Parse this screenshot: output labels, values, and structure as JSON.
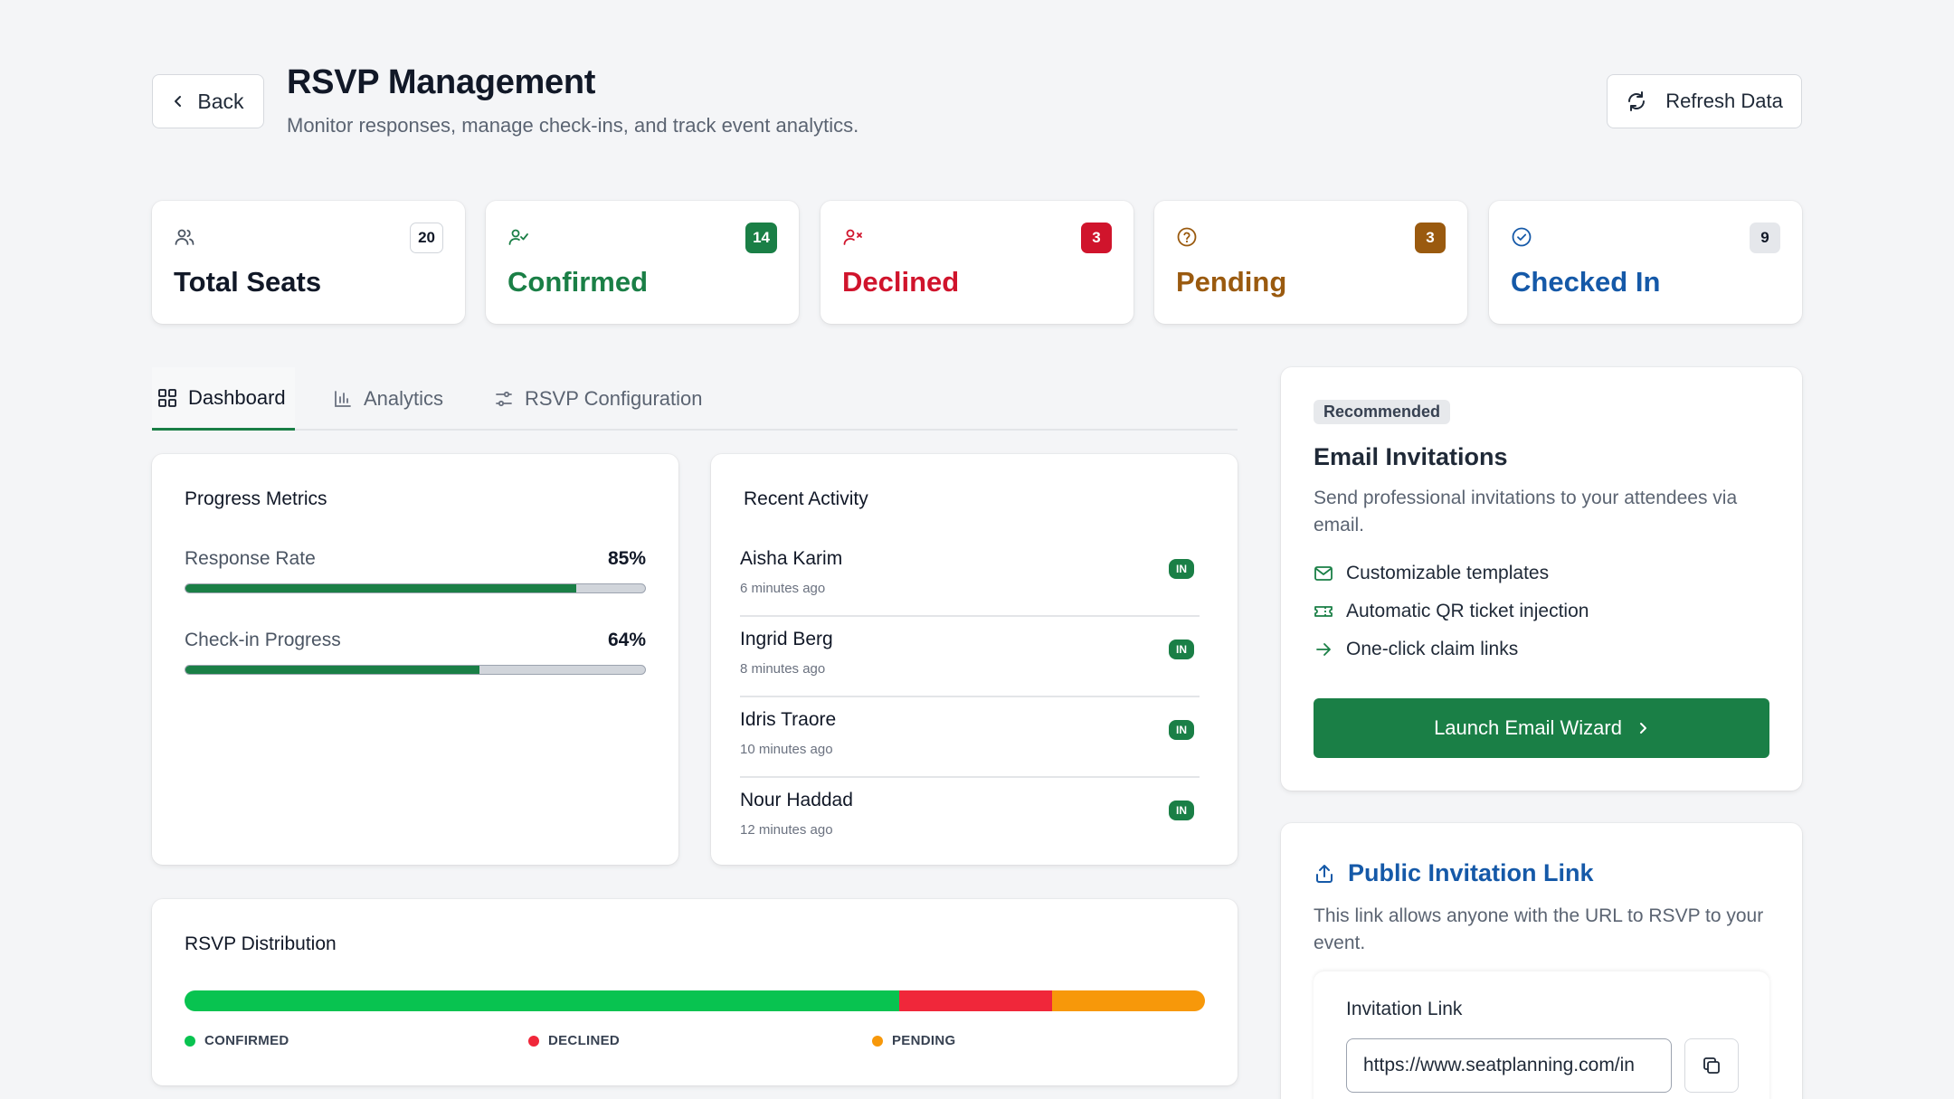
{
  "header": {
    "back_label": "Back",
    "title": "RSVP Management",
    "subtitle": "Monitor responses, manage check-ins, and track event analytics.",
    "refresh_label": "Refresh Data"
  },
  "stats": [
    {
      "label": "Total Seats",
      "count": "20",
      "icon": "users-icon",
      "color": "#111827"
    },
    {
      "label": "Confirmed",
      "count": "14",
      "icon": "user-check-icon",
      "color": "#1a7f46"
    },
    {
      "label": "Declined",
      "count": "3",
      "icon": "user-x-icon",
      "color": "#d0142c"
    },
    {
      "label": "Pending",
      "count": "3",
      "icon": "help-circle-icon",
      "color": "#9a5a0f"
    },
    {
      "label": "Checked In",
      "count": "9",
      "icon": "check-circle-icon",
      "color": "#1559a8"
    }
  ],
  "tabs": [
    {
      "label": "Dashboard",
      "icon": "grid-icon",
      "active": true
    },
    {
      "label": "Analytics",
      "icon": "bar-chart-icon",
      "active": false
    },
    {
      "label": "RSVP Configuration",
      "icon": "sliders-icon",
      "active": false
    }
  ],
  "progress": {
    "title": "Progress Metrics",
    "metrics": [
      {
        "label": "Response Rate",
        "value": "85%",
        "fraction": 0.85
      },
      {
        "label": "Check-in Progress",
        "value": "64%",
        "fraction": 0.64
      }
    ]
  },
  "activity": {
    "title": "Recent Activity",
    "items": [
      {
        "name": "Aisha Karim",
        "time": "6 minutes ago",
        "status": "IN"
      },
      {
        "name": "Ingrid Berg",
        "time": "8 minutes ago",
        "status": "IN"
      },
      {
        "name": "Idris Traore",
        "time": "10 minutes ago",
        "status": "IN"
      },
      {
        "name": "Nour Haddad",
        "time": "12 minutes ago",
        "status": "IN"
      }
    ]
  },
  "distribution": {
    "title": "RSVP Distribution",
    "segments": [
      {
        "label": "CONFIRMED",
        "value": 14,
        "color": "#08c350"
      },
      {
        "label": "DECLINED",
        "value": 3,
        "color": "#f0273a"
      },
      {
        "label": "PENDING",
        "value": 3,
        "color": "#f7980a"
      }
    ]
  },
  "email": {
    "badge": "Recommended",
    "title": "Email Invitations",
    "description": "Send professional invitations to your attendees via email.",
    "features": [
      {
        "label": "Customizable templates",
        "icon": "mail-icon"
      },
      {
        "label": "Automatic QR ticket injection",
        "icon": "ticket-icon"
      },
      {
        "label": "One-click claim links",
        "icon": "arrow-right-icon"
      }
    ],
    "button_label": "Launch Email Wizard"
  },
  "public_link": {
    "title": "Public Invitation Link",
    "description": "This link allows anyone with the URL to RSVP to your event.",
    "field_label": "Invitation Link",
    "url": "https://www.seatplanning.com/in"
  }
}
